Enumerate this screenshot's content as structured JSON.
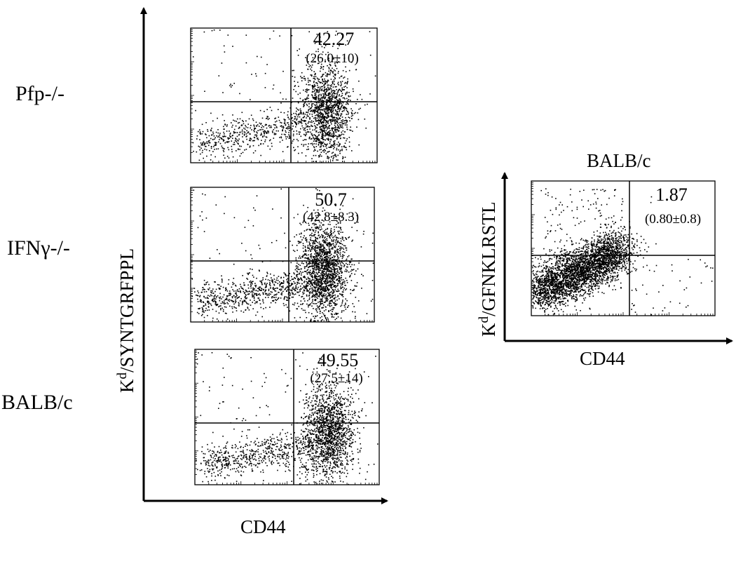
{
  "chart_data": [
    {
      "type": "scatter",
      "panel": "left",
      "ylabel_main": "K",
      "ylabel_sup": "d",
      "ylabel_rest": "/SYNTGRFPPL",
      "xlabel": "CD44",
      "x_scale": "log",
      "y_scale": "log",
      "plots": [
        {
          "row_label": "Pfp-/-",
          "quadrant_percent": "42.27",
          "quadrant_mean": "(26.0",
          "pm": "±",
          "quadrant_sd": "10)",
          "density_level": 0.55
        },
        {
          "row_label": "IFNγ-/-",
          "quadrant_percent": "50.7",
          "quadrant_mean": "(42.8",
          "pm": "±",
          "quadrant_sd": "8.3)",
          "density_level": 0.7
        },
        {
          "row_label": "BALB/c",
          "quadrant_percent": "49.55",
          "quadrant_mean": "(27.5",
          "pm": "±",
          "quadrant_sd": "14)",
          "density_level": 0.62
        }
      ]
    },
    {
      "type": "scatter",
      "panel": "right",
      "title": "BALB/c",
      "ylabel_main": "K",
      "ylabel_sup": "d",
      "ylabel_rest": "/GFNKLRSTL",
      "xlabel": "CD44",
      "x_scale": "log",
      "y_scale": "log",
      "quadrant_percent": "1.87",
      "quadrant_mean": "(0.80",
      "pm": "±",
      "quadrant_sd": "0.8)",
      "density_level": 0.9
    }
  ]
}
